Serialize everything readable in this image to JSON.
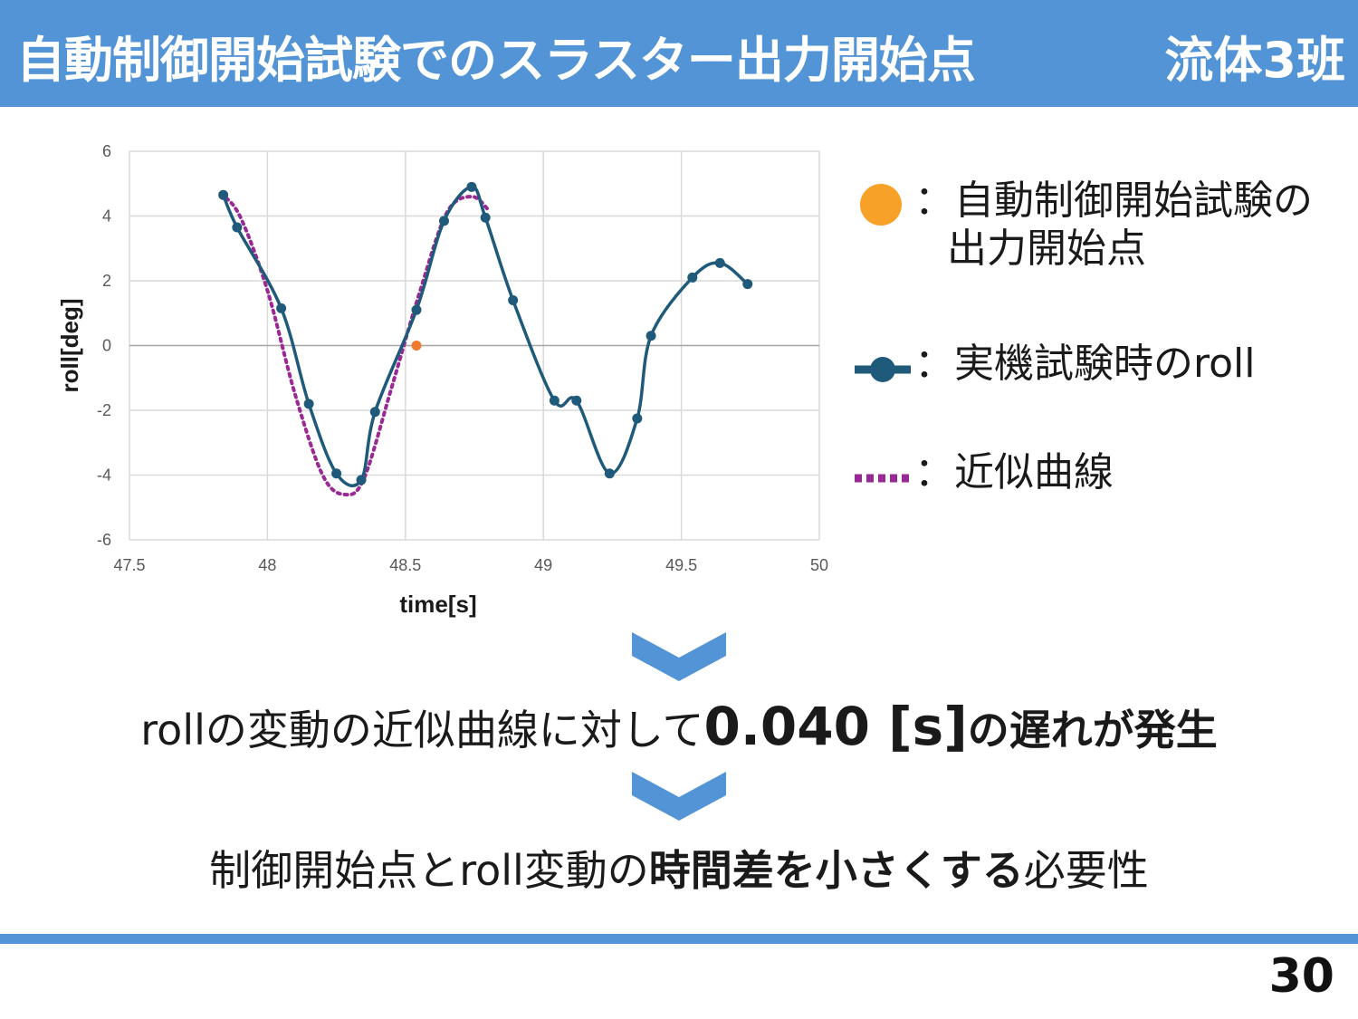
{
  "header": {
    "title": "自動制御開始試験でのスラスター出力開始点",
    "team": "流体3班",
    "color": "#5294d6"
  },
  "legend": [
    {
      "symbol": "orange-dot",
      "color": "#f7a128",
      "label_line1": "：自動制御開始試験の",
      "label_line2": "出力開始点"
    },
    {
      "symbol": "line-marker",
      "color": "#1f5a7a",
      "label_line1": "：実機試験時のroll"
    },
    {
      "symbol": "dotted-line",
      "color": "#9a2a93",
      "label_line1": "：近似曲線"
    }
  ],
  "chart_data": {
    "type": "scatter",
    "xlabel": "time[s]",
    "ylabel": "roll[deg]",
    "xlim": [
      47.5,
      50
    ],
    "ylim": [
      -6,
      6
    ],
    "xticks": [
      "47.5",
      "48",
      "48.5",
      "49",
      "49.5",
      "50"
    ],
    "yticks": [
      "6",
      "4",
      "2",
      "0",
      "-2",
      "-4",
      "-6"
    ],
    "grid": true,
    "series": [
      {
        "style": "smooth-line-markers",
        "color": "#1f5a7a",
        "x": [
          47.84,
          47.89,
          48.05,
          48.15,
          48.25,
          48.34,
          48.39,
          48.54,
          48.64,
          48.74,
          48.79,
          48.89,
          49.04,
          49.12,
          49.24,
          49.34,
          49.39,
          49.54,
          49.64,
          49.74
        ],
        "y": [
          4.65,
          3.65,
          1.15,
          -1.8,
          -3.95,
          -4.15,
          -2.05,
          1.1,
          3.85,
          4.9,
          3.95,
          1.4,
          -1.7,
          -1.7,
          -3.95,
          -2.25,
          0.3,
          2.1,
          2.55,
          1.9
        ]
      },
      {
        "style": "dotted-curve",
        "color": "#9a2a93",
        "x": [
          47.83,
          47.9,
          48.0,
          48.1,
          48.2,
          48.28,
          48.35,
          48.45,
          48.55,
          48.65,
          48.74,
          48.8
        ],
        "y": [
          4.7,
          4.0,
          1.7,
          -1.5,
          -4.0,
          -4.6,
          -4.1,
          -1.3,
          1.6,
          4.1,
          4.6,
          4.2
        ]
      },
      {
        "style": "point",
        "color": "#f07a30",
        "x": [
          48.54
        ],
        "y": [
          0.0
        ]
      }
    ]
  },
  "statement1": {
    "part1": "rollの変動の近似曲線に対して",
    "value": "0.040 [s]",
    "part2": "の遅れが発生"
  },
  "statement2": {
    "part1": "制御開始点とroll変動の",
    "bold": "時間差を小さくする",
    "part2": "必要性"
  },
  "page_number": "30"
}
